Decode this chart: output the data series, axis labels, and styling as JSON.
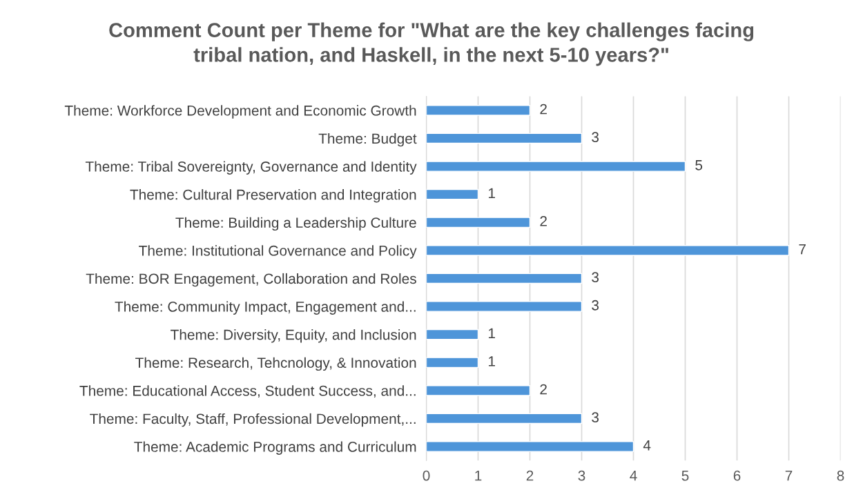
{
  "chart_data": {
    "type": "bar",
    "orientation": "horizontal",
    "title": "Comment Count per Theme for \"What are the key challenges facing\ntribal nation, and Haskell, in the next 5-10 years?\"",
    "categories": [
      "Theme: Workforce Development and Economic Growth",
      "Theme: Budget",
      "Theme: Tribal Sovereignty, Governance and Identity",
      "Theme: Cultural Preservation and Integration",
      "Theme: Building a Leadership Culture",
      "Theme: Institutional Governance and Policy",
      "Theme: BOR Engagement, Collaboration and Roles",
      "Theme: Community Impact, Engagement and...",
      "Theme: Diversity, Equity, and Inclusion",
      "Theme: Research, Tehcnology, & Innovation",
      "Theme: Educational Access, Student Success, and...",
      "Theme: Faculty, Staff, Professional Development,...",
      "Theme: Academic Programs and Curriculum"
    ],
    "values": [
      2,
      3,
      5,
      1,
      2,
      7,
      3,
      3,
      1,
      1,
      2,
      3,
      4
    ],
    "color": "#4e95d9",
    "xlim": [
      0,
      8
    ],
    "xticks": [
      0,
      1,
      2,
      3,
      4,
      5,
      6,
      7,
      8
    ],
    "grid": "x",
    "data_labels": true
  }
}
